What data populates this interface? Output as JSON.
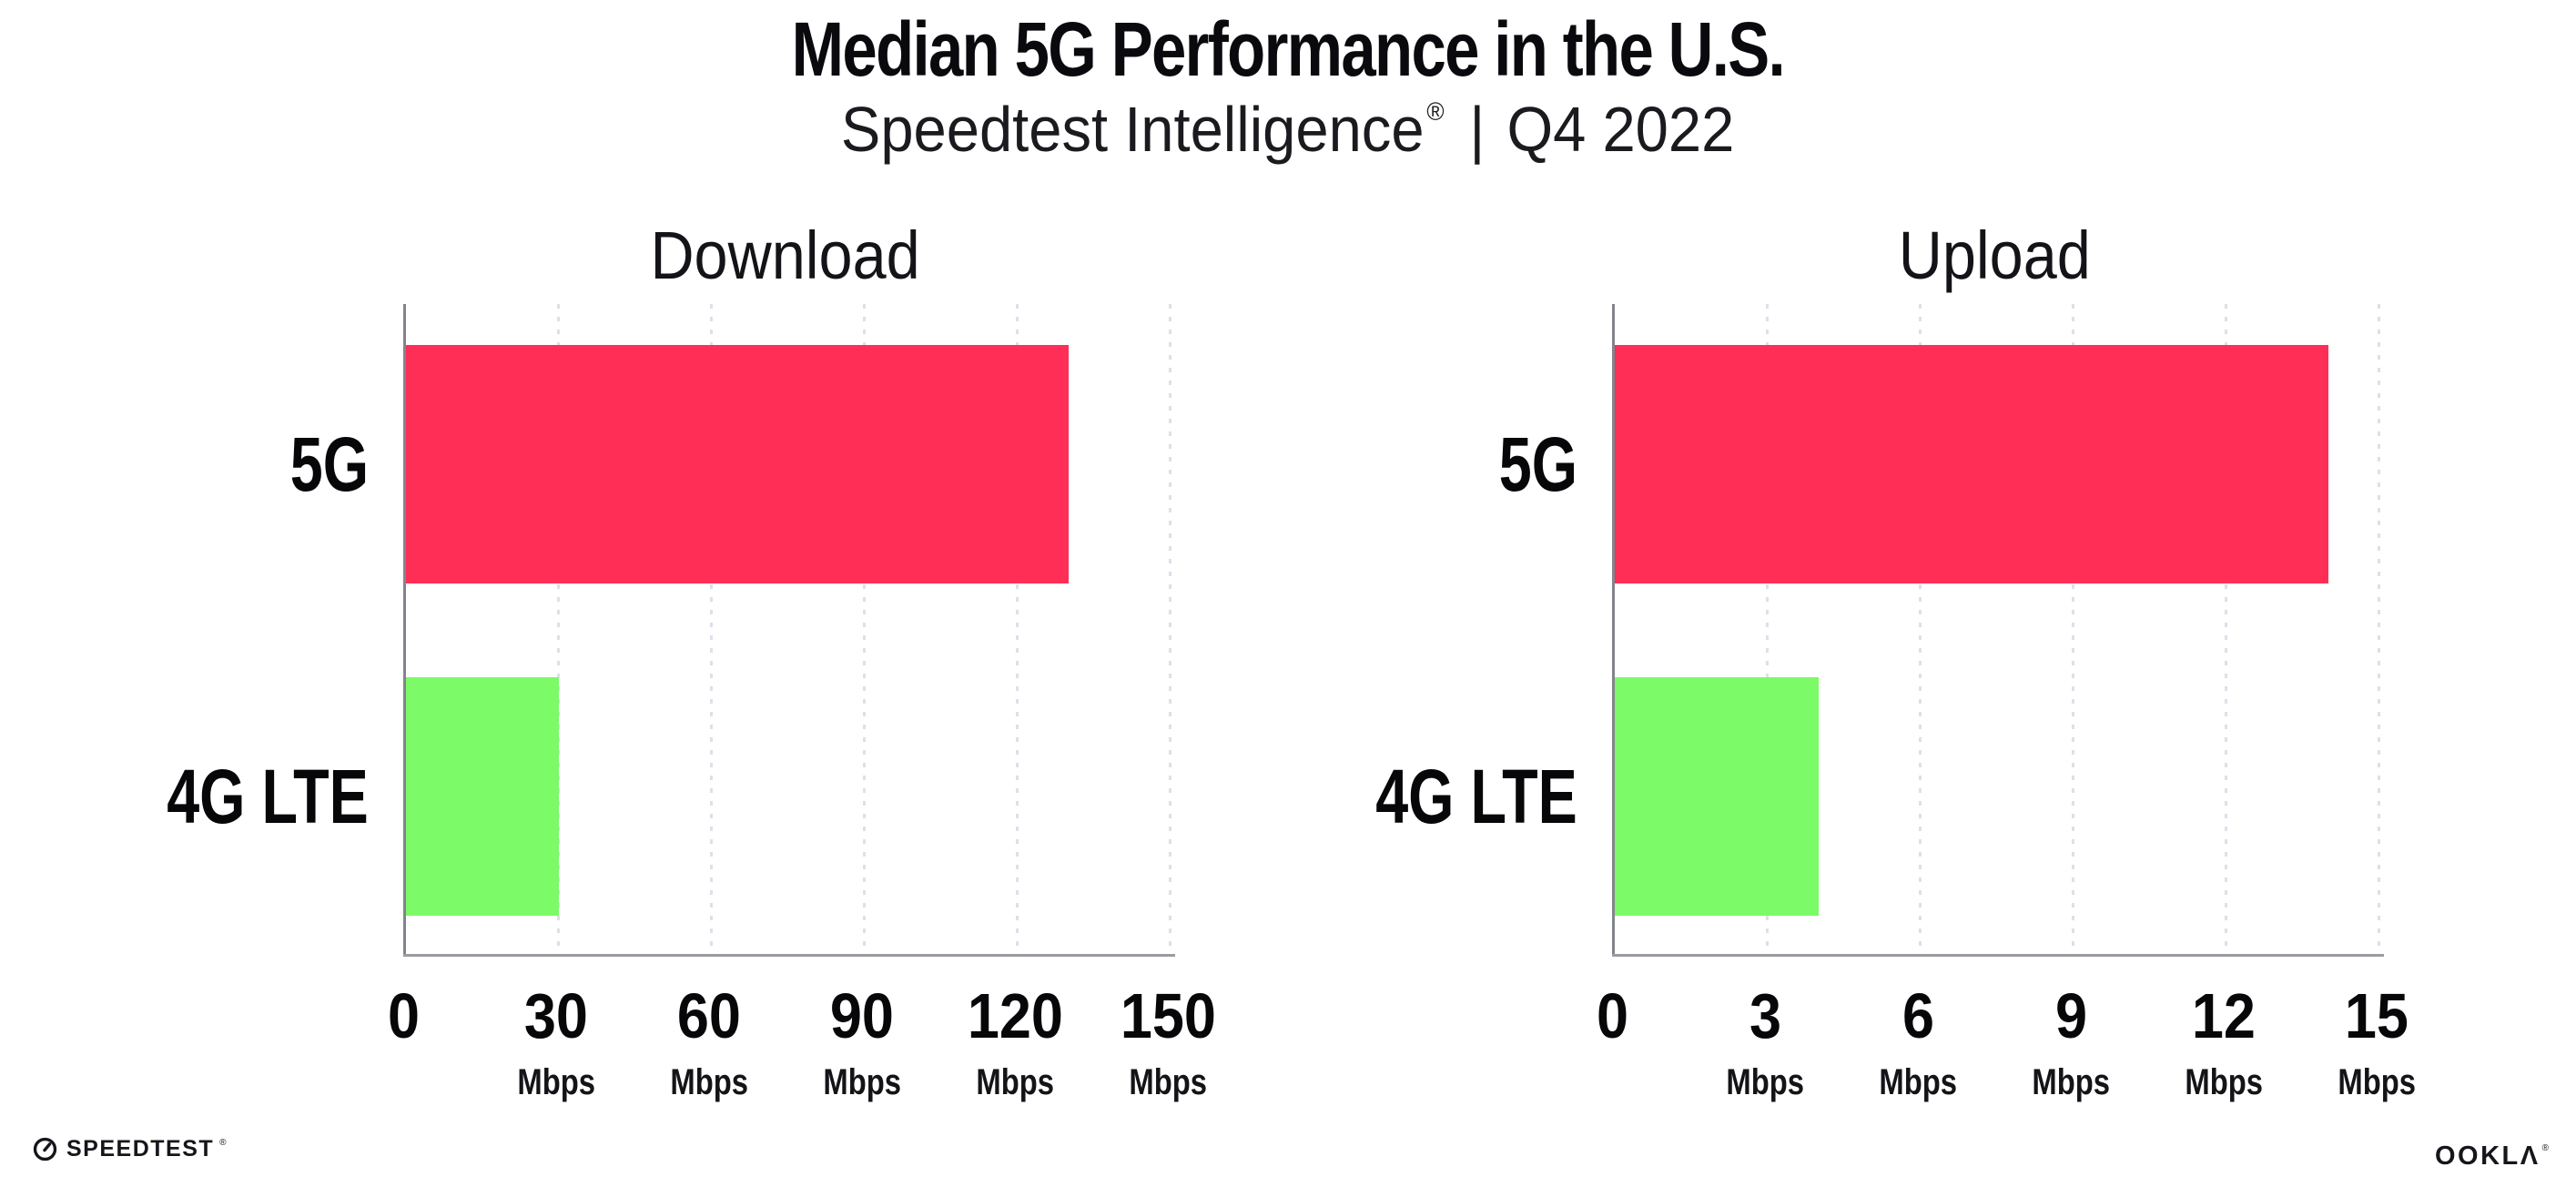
{
  "header": {
    "title": "Median 5G Performance in the U.S.",
    "subtitle": {
      "brand": "Speedtest Intelligence",
      "reg": "®",
      "separator": "|",
      "period": "Q4 2022"
    }
  },
  "chart_data": [
    {
      "type": "bar",
      "orientation": "horizontal",
      "title": "Download",
      "categories": [
        "5G",
        "4G LTE"
      ],
      "values": [
        130,
        30
      ],
      "unit": "Mbps",
      "xlabel": "",
      "ylabel": "",
      "xlim": [
        0,
        150
      ],
      "xticks": [
        0,
        30,
        60,
        90,
        120,
        150
      ],
      "grid": "vertical-dotted",
      "legend": "none",
      "bar_colors": [
        "#FF2E56",
        "#7CFA67"
      ]
    },
    {
      "type": "bar",
      "orientation": "horizontal",
      "title": "Upload",
      "categories": [
        "5G",
        "4G LTE"
      ],
      "values": [
        14,
        4
      ],
      "unit": "Mbps",
      "xlabel": "",
      "ylabel": "",
      "xlim": [
        0,
        15
      ],
      "xticks": [
        0,
        3,
        6,
        9,
        12,
        15
      ],
      "grid": "vertical-dotted",
      "legend": "none",
      "bar_colors": [
        "#FF2E56",
        "#7CFA67"
      ]
    }
  ],
  "footer": {
    "speedtest": {
      "label": "SPEEDTEST",
      "reg": "®",
      "icon": "speedometer-gauge-icon"
    },
    "ookla": {
      "label": "OOKLΛ",
      "reg": "®"
    }
  },
  "colors": {
    "bar_5g": "#FF2E56",
    "bar_4g_lte": "#7CFA67",
    "axis_line": "#84848d",
    "baseline": "#9b9ba1",
    "gridline": "#dfdfe9",
    "text": "#0a0a0e",
    "background": "#ffffff"
  }
}
